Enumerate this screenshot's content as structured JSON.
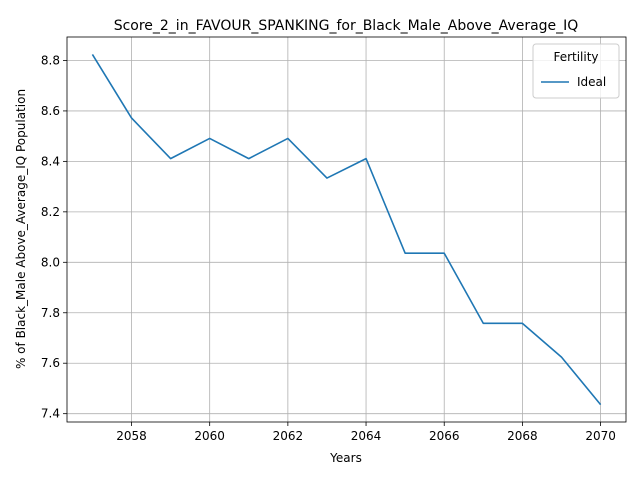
{
  "chart_data": {
    "type": "line",
    "title": "Score_2_in_FAVOUR_SPANKING_for_Black_Male_Above_Average_IQ",
    "xlabel": "Years",
    "ylabel": "% of Black_Male Above_Average_IQ Population",
    "x": [
      2057,
      2058,
      2059,
      2060,
      2061,
      2062,
      2063,
      2064,
      2065,
      2066,
      2067,
      2068,
      2069,
      2070
    ],
    "series": [
      {
        "name": "Ideal",
        "color": "#1f77b4",
        "values": [
          8.824,
          8.572,
          8.411,
          8.491,
          8.411,
          8.491,
          8.334,
          8.411,
          8.036,
          8.036,
          7.758,
          7.758,
          7.624,
          7.436
        ]
      }
    ],
    "xlim": [
      2056.35,
      2070.65
    ],
    "ylim": [
      7.367,
      8.893
    ],
    "xticks": [
      2058,
      2060,
      2062,
      2064,
      2066,
      2068,
      2070
    ],
    "yticks": [
      7.4,
      7.6,
      7.8,
      8.0,
      8.2,
      8.4,
      8.6,
      8.8
    ],
    "ytick_labels": [
      "7.4",
      "7.6",
      "7.8",
      "8.0",
      "8.2",
      "8.4",
      "8.6",
      "8.8"
    ],
    "grid": true,
    "legend": {
      "title": "Fertility",
      "position": "top-right"
    }
  }
}
